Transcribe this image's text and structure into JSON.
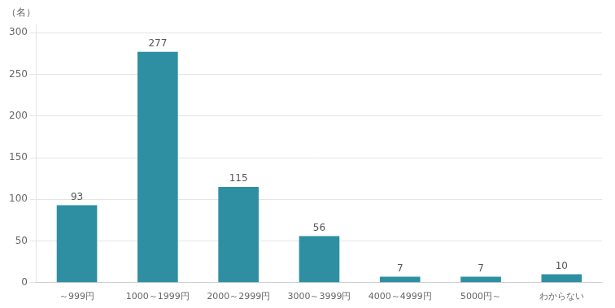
{
  "chart_data": {
    "type": "bar",
    "ylabel": "（名）",
    "categories": [
      "～999円",
      "1000～1999円",
      "2000～2999円",
      "3000～3999円",
      "4000～4999円",
      "5000円～",
      "わからない"
    ],
    "values": [
      93,
      277,
      115,
      56,
      7,
      7,
      10
    ],
    "color": "#2e8fa3",
    "ylim": [
      0,
      310
    ],
    "yticks": [
      0,
      50,
      100,
      150,
      200,
      250,
      300
    ],
    "grid": true,
    "data_labels": true
  }
}
